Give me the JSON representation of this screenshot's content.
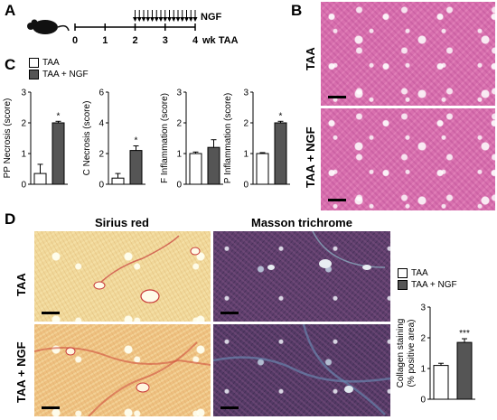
{
  "panels": {
    "A": "A",
    "B": "B",
    "C": "C",
    "D": "D"
  },
  "timeline": {
    "drug": "NGF",
    "ticks": [
      "0",
      "1",
      "2",
      "3",
      "4"
    ],
    "unit": "wk TAA",
    "arrow_count": 15
  },
  "groups": {
    "taa": "TAA",
    "ngf": "TAA + NGF"
  },
  "stains": {
    "sirius": "Sirius red",
    "masson": "Masson trichrome"
  },
  "colors": {
    "taa": "#ffffff",
    "ngf": "#555555",
    "axis": "#000000"
  },
  "chart_data": [
    {
      "type": "bar",
      "ylabel": "PP Necrosis (score)",
      "ylim": [
        0,
        3
      ],
      "yticks": [
        "0",
        "1",
        "2",
        "3"
      ],
      "categories": [
        "TAA",
        "TAA + NGF"
      ],
      "values": [
        0.35,
        2.0
      ],
      "errors": [
        0.3,
        0.05
      ],
      "sig": "*"
    },
    {
      "type": "bar",
      "ylabel": "C Necrosis (score)",
      "ylim": [
        0,
        6
      ],
      "yticks": [
        "0",
        "2",
        "4",
        "6"
      ],
      "categories": [
        "TAA",
        "TAA + NGF"
      ],
      "values": [
        0.4,
        2.2
      ],
      "errors": [
        0.3,
        0.3
      ],
      "sig": "*"
    },
    {
      "type": "bar",
      "ylabel": "F Inflammation (score)",
      "ylim": [
        0,
        3
      ],
      "yticks": [
        "0",
        "1",
        "2",
        "3"
      ],
      "categories": [
        "TAA",
        "TAA + NGF"
      ],
      "values": [
        1.0,
        1.2
      ],
      "errors": [
        0.05,
        0.25
      ],
      "sig": ""
    },
    {
      "type": "bar",
      "ylabel": "P Inflammation (score)",
      "ylim": [
        0,
        3
      ],
      "yticks": [
        "0",
        "1",
        "2",
        "3"
      ],
      "categories": [
        "TAA",
        "TAA + NGF"
      ],
      "values": [
        1.0,
        2.0
      ],
      "errors": [
        0.03,
        0.05
      ],
      "sig": "*"
    },
    {
      "type": "bar",
      "ylabel": "Collagen staining (% positive area)",
      "ylabel_lines": [
        "Collagen staining",
        "(% positive area)"
      ],
      "ylim": [
        0,
        3
      ],
      "yticks": [
        "0",
        "1",
        "2",
        "3"
      ],
      "categories": [
        "TAA",
        "TAA + NGF"
      ],
      "values": [
        1.1,
        1.85
      ],
      "errors": [
        0.07,
        0.12
      ],
      "sig": "***"
    }
  ]
}
